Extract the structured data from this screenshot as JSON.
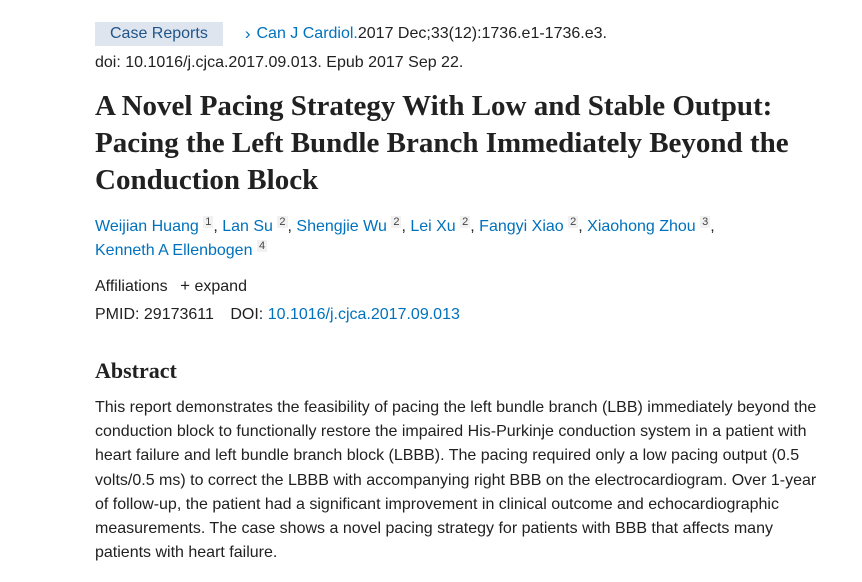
{
  "header": {
    "article_type": "Case Reports",
    "journal": "Can J Cardiol.",
    "citation": " 2017 Dec;33(12):1736.e1-1736.e3.",
    "doi_line": "doi: 10.1016/j.cjca.2017.09.013. Epub 2017 Sep 22."
  },
  "title": "A Novel Pacing Strategy With Low and Stable Output: Pacing the Left Bundle Branch Immediately Beyond the Conduction Block",
  "authors": [
    {
      "name": "Weijian Huang",
      "aff": "1"
    },
    {
      "name": "Lan Su",
      "aff": "2"
    },
    {
      "name": "Shengjie Wu",
      "aff": "2"
    },
    {
      "name": "Lei Xu",
      "aff": "2"
    },
    {
      "name": "Fangyi Xiao",
      "aff": "2"
    },
    {
      "name": "Xiaohong Zhou",
      "aff": "3"
    },
    {
      "name": "Kenneth A Ellenbogen",
      "aff": "4"
    }
  ],
  "affiliations": {
    "label": "Affiliations",
    "expand_icon": "plus-icon",
    "expand_label": "expand"
  },
  "ids": {
    "pmid_label": "PMID:",
    "pmid": "29173611",
    "doi_label": "DOI:",
    "doi": "10.1016/j.cjca.2017.09.013"
  },
  "abstract": {
    "heading": "Abstract",
    "text": "This report demonstrates the feasibility of pacing the left bundle branch (LBB) immediately beyond the conduction block to functionally restore the impaired His-Purkinje conduction system in a patient with heart failure and left bundle branch block (LBBB). The pacing required only a low pacing output (0.5 volts/0.5 ms) to correct the LBBB with accompanying right BBB on the electrocardiogram. Over 1-year of follow-up, the patient had a significant improvement in clinical outcome and echocardiographic measurements. The case shows a novel pacing strategy for patients with BBB that affects many patients with heart failure."
  },
  "colors": {
    "link": "#0071bc",
    "badge_bg": "#dfe5ef"
  }
}
